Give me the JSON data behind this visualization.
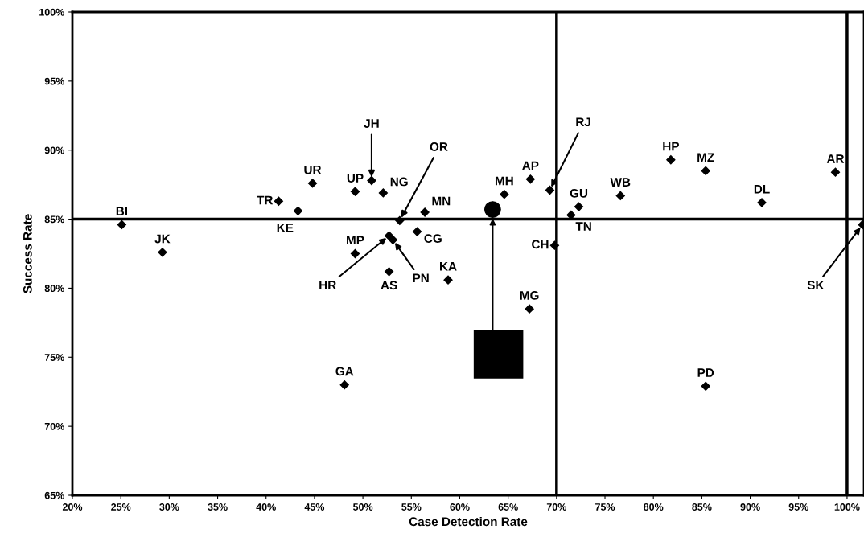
{
  "chart_data": {
    "type": "scatter",
    "xlabel": "Case Detection Rate",
    "ylabel": "Success Rate",
    "xlim": [
      20,
      101.75
    ],
    "ylim": [
      65,
      100
    ],
    "xticks": [
      {
        "value": 20,
        "label": "20%"
      },
      {
        "value": 25,
        "label": "25%"
      },
      {
        "value": 30,
        "label": "30%"
      },
      {
        "value": 35,
        "label": "35%"
      },
      {
        "value": 40,
        "label": "40%"
      },
      {
        "value": 45,
        "label": "45%"
      },
      {
        "value": 50,
        "label": "50%"
      },
      {
        "value": 55,
        "label": "55%"
      },
      {
        "value": 60,
        "label": "60%"
      },
      {
        "value": 65,
        "label": "65%"
      },
      {
        "value": 70,
        "label": "70%"
      },
      {
        "value": 75,
        "label": "75%"
      },
      {
        "value": 80,
        "label": "80%"
      },
      {
        "value": 85,
        "label": "85%"
      },
      {
        "value": 90,
        "label": "90%"
      },
      {
        "value": 95,
        "label": "95%"
      },
      {
        "value": 100,
        "label": "100%"
      }
    ],
    "yticks": [
      {
        "value": 65,
        "label": "65%"
      },
      {
        "value": 70,
        "label": "70%"
      },
      {
        "value": 75,
        "label": "75%"
      },
      {
        "value": 80,
        "label": "80%"
      },
      {
        "value": 85,
        "label": "85%"
      },
      {
        "value": 90,
        "label": "90%"
      },
      {
        "value": 95,
        "label": "95%"
      },
      {
        "value": 100,
        "label": "100%"
      }
    ],
    "grid": false,
    "legend": false,
    "series": [
      {
        "color": "#000000",
        "marker": "diamond",
        "x": [
          25.1,
          29.3,
          41.3,
          43.3,
          44.8,
          49.2,
          50.9,
          52.1,
          53.8,
          56.4,
          55.6,
          49.2,
          52.7,
          53.1,
          52.7,
          58.8,
          48.1,
          64.6,
          67.3,
          69.3,
          72.3,
          71.5,
          69.8,
          67.2,
          76.6,
          81.8,
          85.4,
          91.2,
          98.8,
          85.4,
          101.6
        ],
        "values": [
          84.6,
          82.6,
          86.3,
          85.6,
          87.6,
          87.0,
          87.8,
          86.9,
          84.9,
          85.5,
          84.1,
          82.5,
          83.8,
          83.5,
          81.2,
          80.6,
          73.0,
          86.8,
          87.9,
          87.1,
          85.9,
          85.3,
          83.1,
          78.5,
          86.7,
          89.3,
          88.5,
          86.2,
          88.4,
          72.9,
          84.6
        ]
      },
      {
        "color": "#000000",
        "marker": "circle",
        "x": [
          63.4
        ],
        "values": [
          85.7
        ]
      }
    ],
    "ref_lines": [
      {
        "axis": "y",
        "value": 85
      },
      {
        "axis": "x",
        "value": 70
      },
      {
        "axis": "x",
        "value": 100
      }
    ],
    "annotations": [
      {
        "text": "BI",
        "x": 25.1,
        "y": 84.6
      },
      {
        "text": "JK",
        "x": 29.3,
        "y": 82.6
      },
      {
        "text": "TR",
        "x": 41.3,
        "y": 86.3
      },
      {
        "text": "KE",
        "x": 43.3,
        "y": 85.6
      },
      {
        "text": "UR",
        "x": 44.8,
        "y": 87.6
      },
      {
        "text": "UP",
        "x": 49.2,
        "y": 87.0
      },
      {
        "text": "JH",
        "x": 50.9,
        "y": 87.8
      },
      {
        "text": "NG",
        "x": 52.1,
        "y": 86.9
      },
      {
        "text": "OR",
        "x": 53.8,
        "y": 84.9
      },
      {
        "text": "MN",
        "x": 56.4,
        "y": 85.5
      },
      {
        "text": "CG",
        "x": 55.6,
        "y": 84.1
      },
      {
        "text": "MP",
        "x": 49.2,
        "y": 82.5
      },
      {
        "text": "HR",
        "x": 52.7,
        "y": 83.8
      },
      {
        "text": "PN",
        "x": 53.1,
        "y": 83.5
      },
      {
        "text": "AS",
        "x": 52.7,
        "y": 81.2
      },
      {
        "text": "KA",
        "x": 58.8,
        "y": 80.6
      },
      {
        "text": "GA",
        "x": 48.1,
        "y": 73.0
      },
      {
        "text": "MH",
        "x": 64.6,
        "y": 86.8
      },
      {
        "text": "AP",
        "x": 67.3,
        "y": 87.9
      },
      {
        "text": "RJ",
        "x": 69.3,
        "y": 87.1
      },
      {
        "text": "GU",
        "x": 72.3,
        "y": 85.9
      },
      {
        "text": "TN",
        "x": 71.5,
        "y": 85.3
      },
      {
        "text": "CH",
        "x": 69.8,
        "y": 83.1
      },
      {
        "text": "MG",
        "x": 67.2,
        "y": 78.5
      },
      {
        "text": "WB",
        "x": 76.6,
        "y": 86.7
      },
      {
        "text": "HP",
        "x": 81.8,
        "y": 89.3
      },
      {
        "text": "MZ",
        "x": 85.4,
        "y": 88.5
      },
      {
        "text": "DL",
        "x": 91.2,
        "y": 86.2
      },
      {
        "text": "AR",
        "x": 98.8,
        "y": 88.4
      },
      {
        "text": "PD",
        "x": 85.4,
        "y": 72.9
      },
      {
        "text": "SK",
        "x": 101.6,
        "y": 84.6
      }
    ]
  }
}
